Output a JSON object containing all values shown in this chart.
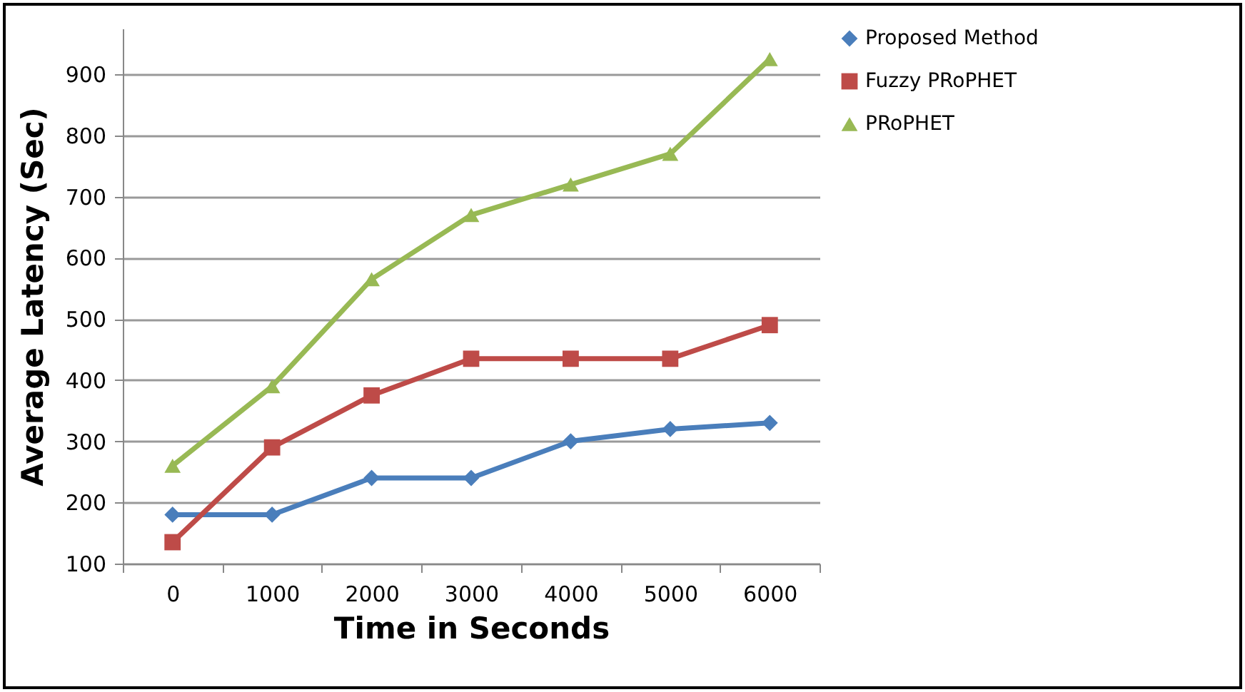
{
  "chart_data": {
    "type": "line",
    "xlabel": "Time in Seconds",
    "ylabel": "Average Latency (Sec)",
    "categories": [
      "0",
      "1000",
      "2000",
      "3000",
      "4000",
      "5000",
      "6000"
    ],
    "series": [
      {
        "name": "Proposed Method",
        "color": "#4a7ebb",
        "marker": "diamond",
        "values": [
          180,
          180,
          240,
          240,
          300,
          320,
          330
        ]
      },
      {
        "name": "Fuzzy PRoPHET",
        "color": "#be4b48",
        "marker": "square",
        "values": [
          135,
          290,
          375,
          435,
          435,
          435,
          490
        ]
      },
      {
        "name": "PRoPHET",
        "color": "#98b954",
        "marker": "triangle",
        "values": [
          260,
          390,
          565,
          670,
          720,
          770,
          925
        ]
      }
    ],
    "ylim": [
      100,
      975
    ],
    "yticks": [
      100,
      200,
      300,
      400,
      500,
      600,
      700,
      800,
      900
    ],
    "grid": "y",
    "legend": "right"
  }
}
